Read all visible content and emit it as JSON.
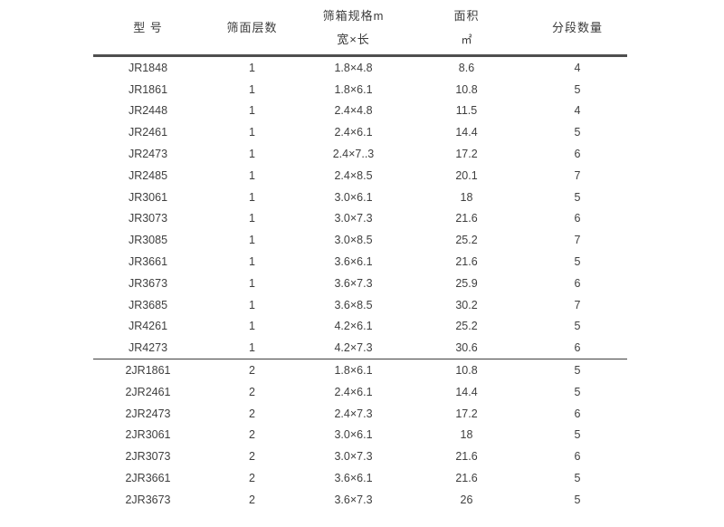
{
  "table": {
    "columns": [
      {
        "id": "model",
        "label": "型 号"
      },
      {
        "id": "layers",
        "label": "筛面层数"
      },
      {
        "id": "size",
        "label": "筛箱规格m",
        "label2": "宽×长"
      },
      {
        "id": "area",
        "label": "面积",
        "label2": "㎡"
      },
      {
        "id": "segments",
        "label": "分段数量"
      }
    ],
    "groups": [
      {
        "rows": [
          [
            "JR1848",
            "1",
            "1.8×4.8",
            "8.6",
            "4"
          ],
          [
            "JR1861",
            "1",
            "1.8×6.1",
            "10.8",
            "5"
          ],
          [
            "JR2448",
            "1",
            "2.4×4.8",
            "11.5",
            "4"
          ],
          [
            "JR2461",
            "1",
            "2.4×6.1",
            "14.4",
            "5"
          ],
          [
            "JR2473",
            "1",
            "2.4×7..3",
            "17.2",
            "6"
          ],
          [
            "JR2485",
            "1",
            "2.4×8.5",
            "20.1",
            "7"
          ],
          [
            "JR3061",
            "1",
            "3.0×6.1",
            "18",
            "5"
          ],
          [
            "JR3073",
            "1",
            "3.0×7.3",
            "21.6",
            "6"
          ],
          [
            "JR3085",
            "1",
            "3.0×8.5",
            "25.2",
            "7"
          ],
          [
            "JR3661",
            "1",
            "3.6×6.1",
            "21.6",
            "5"
          ],
          [
            "JR3673",
            "1",
            "3.6×7.3",
            "25.9",
            "6"
          ],
          [
            "JR3685",
            "1",
            "3.6×8.5",
            "30.2",
            "7"
          ],
          [
            "JR4261",
            "1",
            "4.2×6.1",
            "25.2",
            "5"
          ],
          [
            "JR4273",
            "1",
            "4.2×7.3",
            "30.6",
            "6"
          ]
        ]
      },
      {
        "rows": [
          [
            "2JR1861",
            "2",
            "1.8×6.1",
            "10.8",
            "5"
          ],
          [
            "2JR2461",
            "2",
            "2.4×6.1",
            "14.4",
            "5"
          ],
          [
            "2JR2473",
            "2",
            "2.4×7.3",
            "17.2",
            "6"
          ],
          [
            "2JR3061",
            "2",
            "3.0×6.1",
            "18",
            "5"
          ],
          [
            "2JR3073",
            "2",
            "3.0×7.3",
            "21.6",
            "6"
          ],
          [
            "2JR3661",
            "2",
            "3.6×6.1",
            "21.6",
            "5"
          ],
          [
            "2JR3673",
            "2",
            "3.6×7.3",
            "26",
            "5"
          ]
        ]
      }
    ]
  }
}
